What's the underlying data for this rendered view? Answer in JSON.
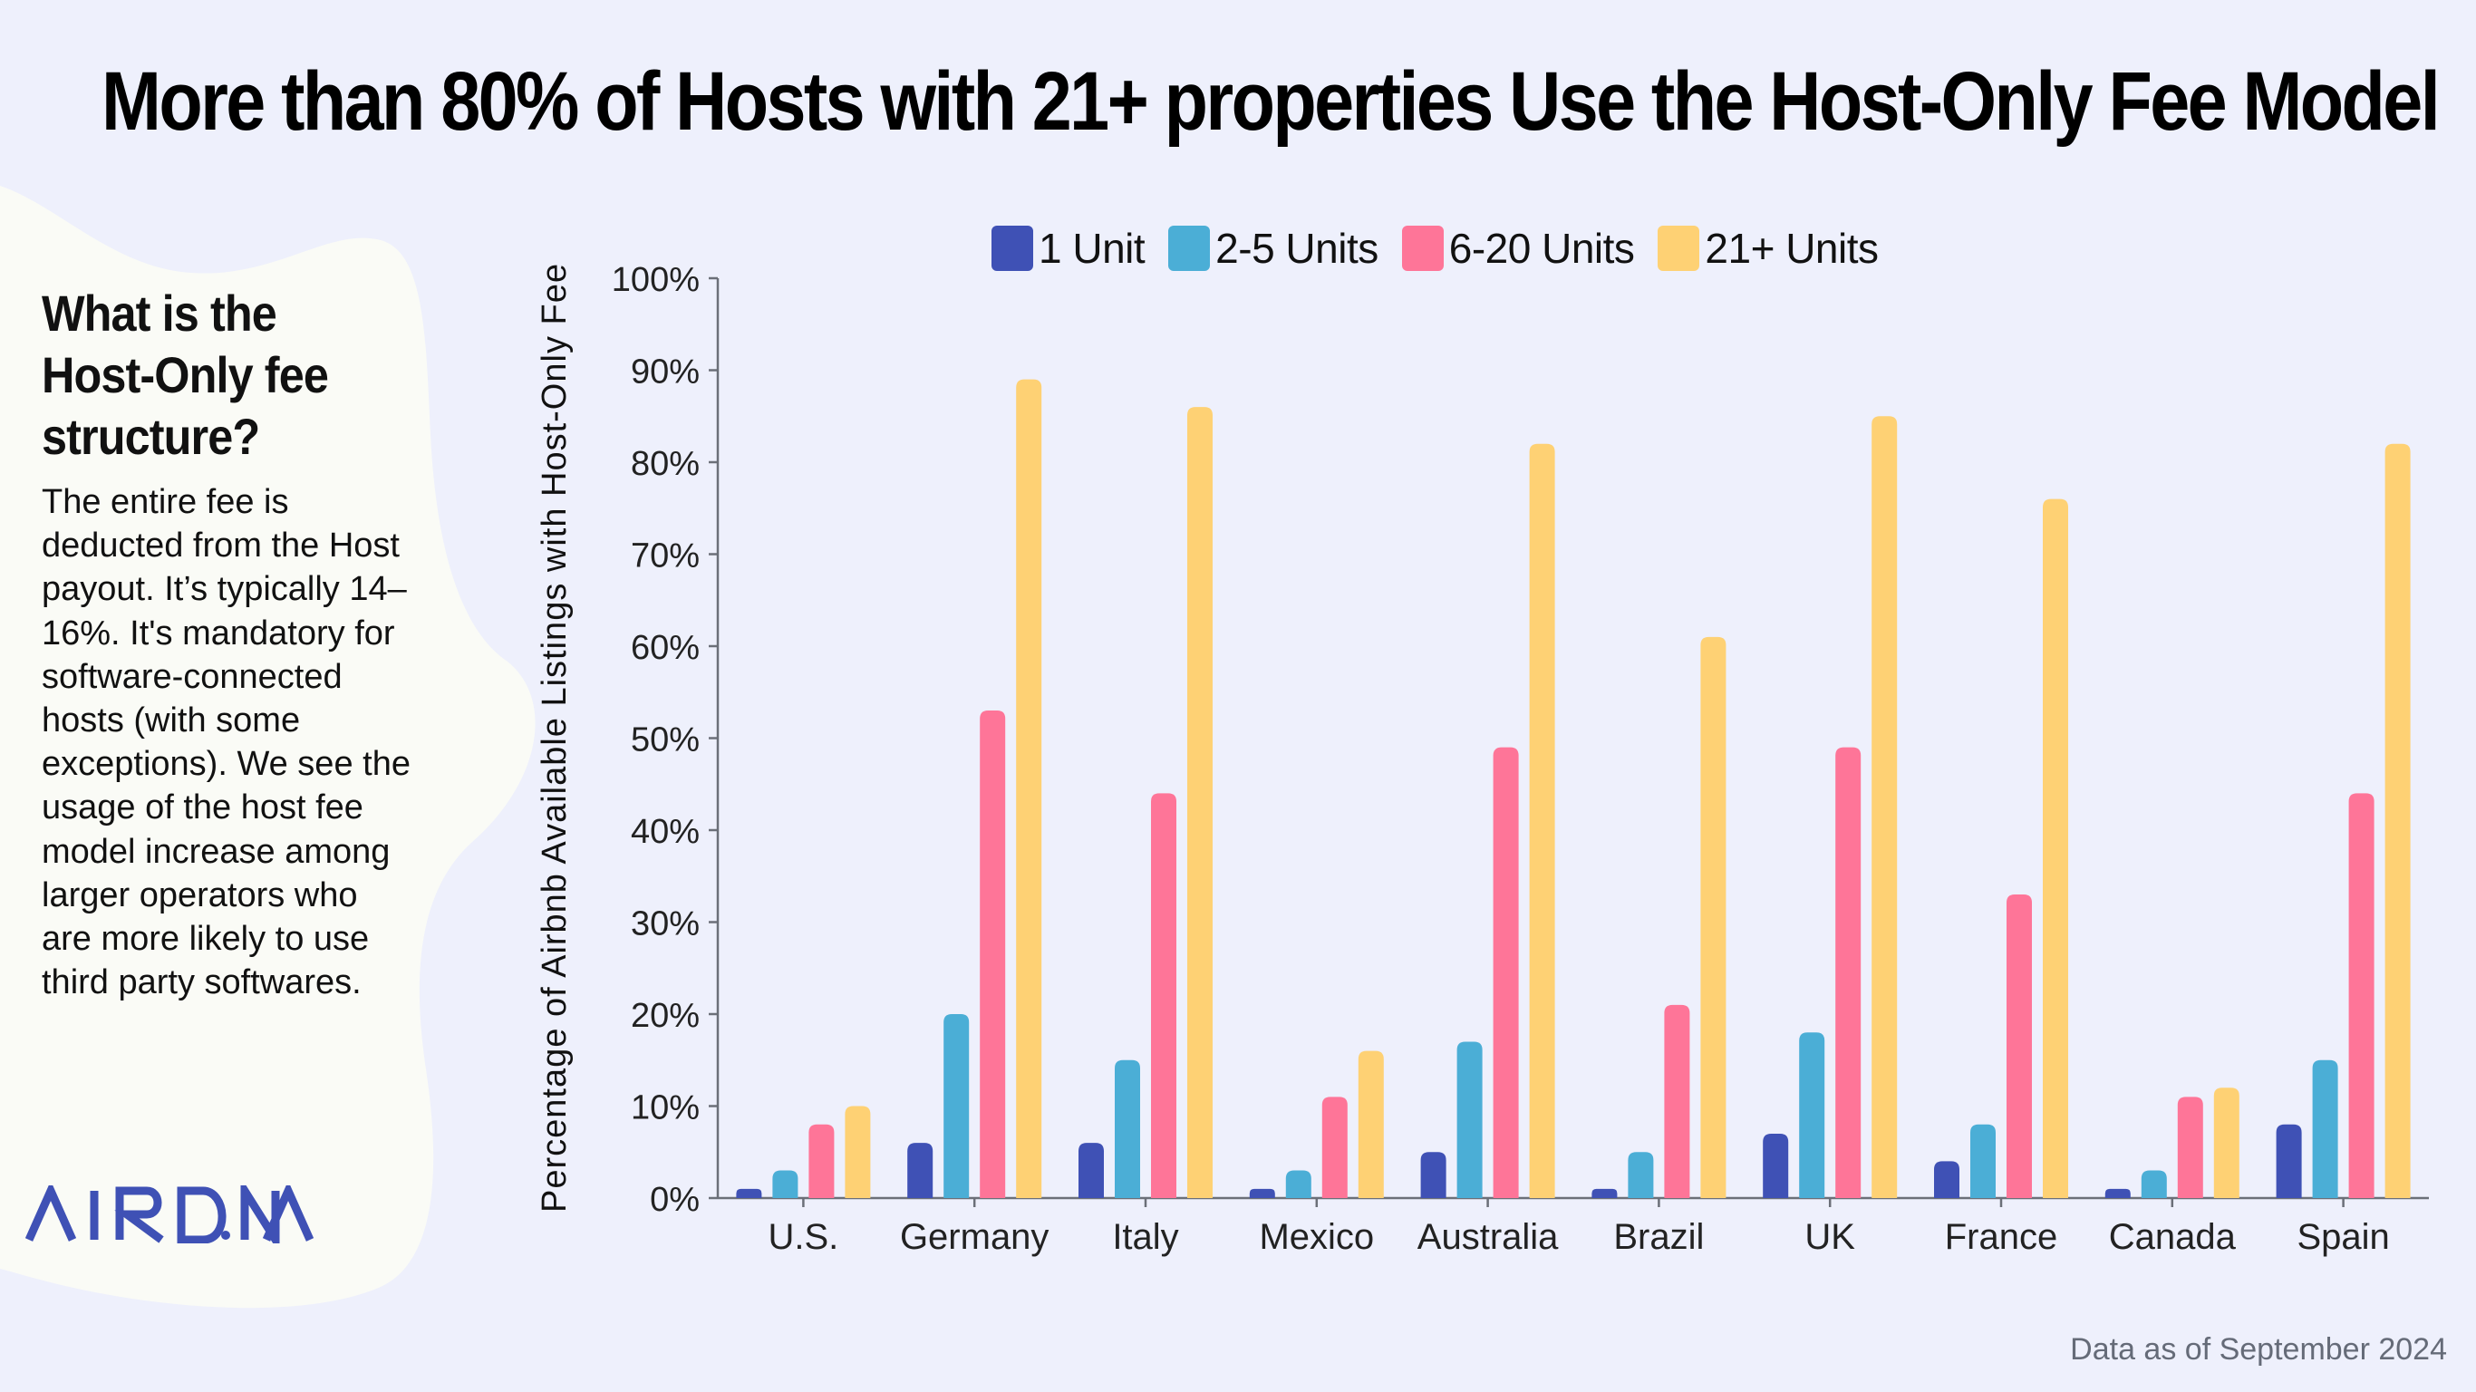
{
  "title": "More than 80% of Hosts with 21+ properties Use the Host-Only Fee Model",
  "sidebar": {
    "heading": "What is the Host-Only fee structure?",
    "body": "The entire fee is deducted from the Host payout. It’s typically 14–16%. It's mandatory for software-connected hosts (with some exceptions). We see the usage of the host fee model increase among larger operators who are more likely to use third party softwares.",
    "logo_text": "AIRDNA",
    "logo_icon": "airdna-logo"
  },
  "footnote": "Data as of September 2024",
  "colors": {
    "background": "#EEF0FC",
    "panel": "#FAFBF6",
    "axis": "#6B6F78",
    "logo": "#3F51B5"
  },
  "chart_data": {
    "type": "bar",
    "title": "",
    "xlabel": "",
    "ylabel": "Percentage of Airbnb Available Listings with Host-Only Fee",
    "ylim": [
      0,
      100
    ],
    "yticks": [
      0,
      10,
      20,
      30,
      40,
      50,
      60,
      70,
      80,
      90,
      100
    ],
    "ytick_labels": [
      "0%",
      "10%",
      "20%",
      "30%",
      "40%",
      "50%",
      "60%",
      "70%",
      "80%",
      "90%",
      "100%"
    ],
    "grid": false,
    "legend_position": "top-center",
    "categories": [
      "U.S.",
      "Germany",
      "Italy",
      "Mexico",
      "Australia",
      "Brazil",
      "UK",
      "France",
      "Canada",
      "Spain"
    ],
    "series": [
      {
        "name": "1 Unit",
        "color": "#3F51B5",
        "values": [
          1,
          6,
          6,
          1,
          5,
          1,
          7,
          4,
          1,
          8
        ]
      },
      {
        "name": "2-5 Units",
        "color": "#4BAED6",
        "values": [
          3,
          20,
          15,
          3,
          17,
          5,
          18,
          8,
          3,
          15
        ]
      },
      {
        "name": "6-20 Units",
        "color": "#FE7598",
        "values": [
          8,
          53,
          44,
          11,
          49,
          21,
          49,
          33,
          11,
          44
        ]
      },
      {
        "name": "21+ Units",
        "color": "#FED174",
        "values": [
          10,
          89,
          86,
          16,
          82,
          61,
          85,
          76,
          12,
          82
        ]
      }
    ]
  }
}
